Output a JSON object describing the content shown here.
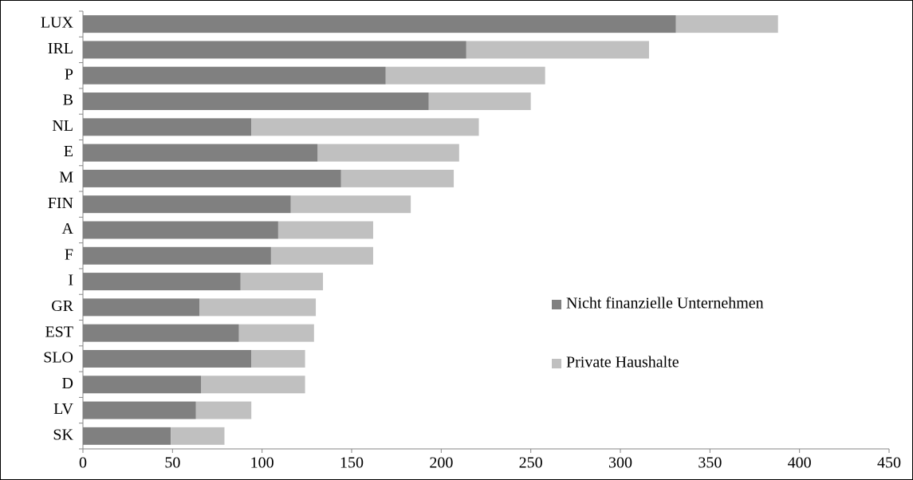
{
  "chart_data": {
    "type": "stacked-bar-horizontal",
    "categories": [
      "LUX",
      "IRL",
      "P",
      "B",
      "NL",
      "E",
      "M",
      "FIN",
      "A",
      "F",
      "I",
      "GR",
      "EST",
      "SLO",
      "D",
      "LV",
      "SK"
    ],
    "series": [
      {
        "name": "Nicht finanzielle Unternehmen",
        "color": "#808080",
        "values": [
          331,
          214,
          169,
          193,
          94,
          131,
          144,
          116,
          109,
          105,
          88,
          65,
          87,
          94,
          66,
          63,
          49
        ]
      },
      {
        "name": "Private Haushalte",
        "color": "#c0c0c0",
        "values": [
          57,
          102,
          89,
          57,
          127,
          79,
          63,
          67,
          53,
          57,
          46,
          65,
          42,
          30,
          58,
          31,
          30
        ]
      }
    ],
    "xlim": [
      0,
      450
    ],
    "xticks": [
      0,
      50,
      100,
      150,
      200,
      250,
      300,
      350,
      400,
      450
    ]
  }
}
